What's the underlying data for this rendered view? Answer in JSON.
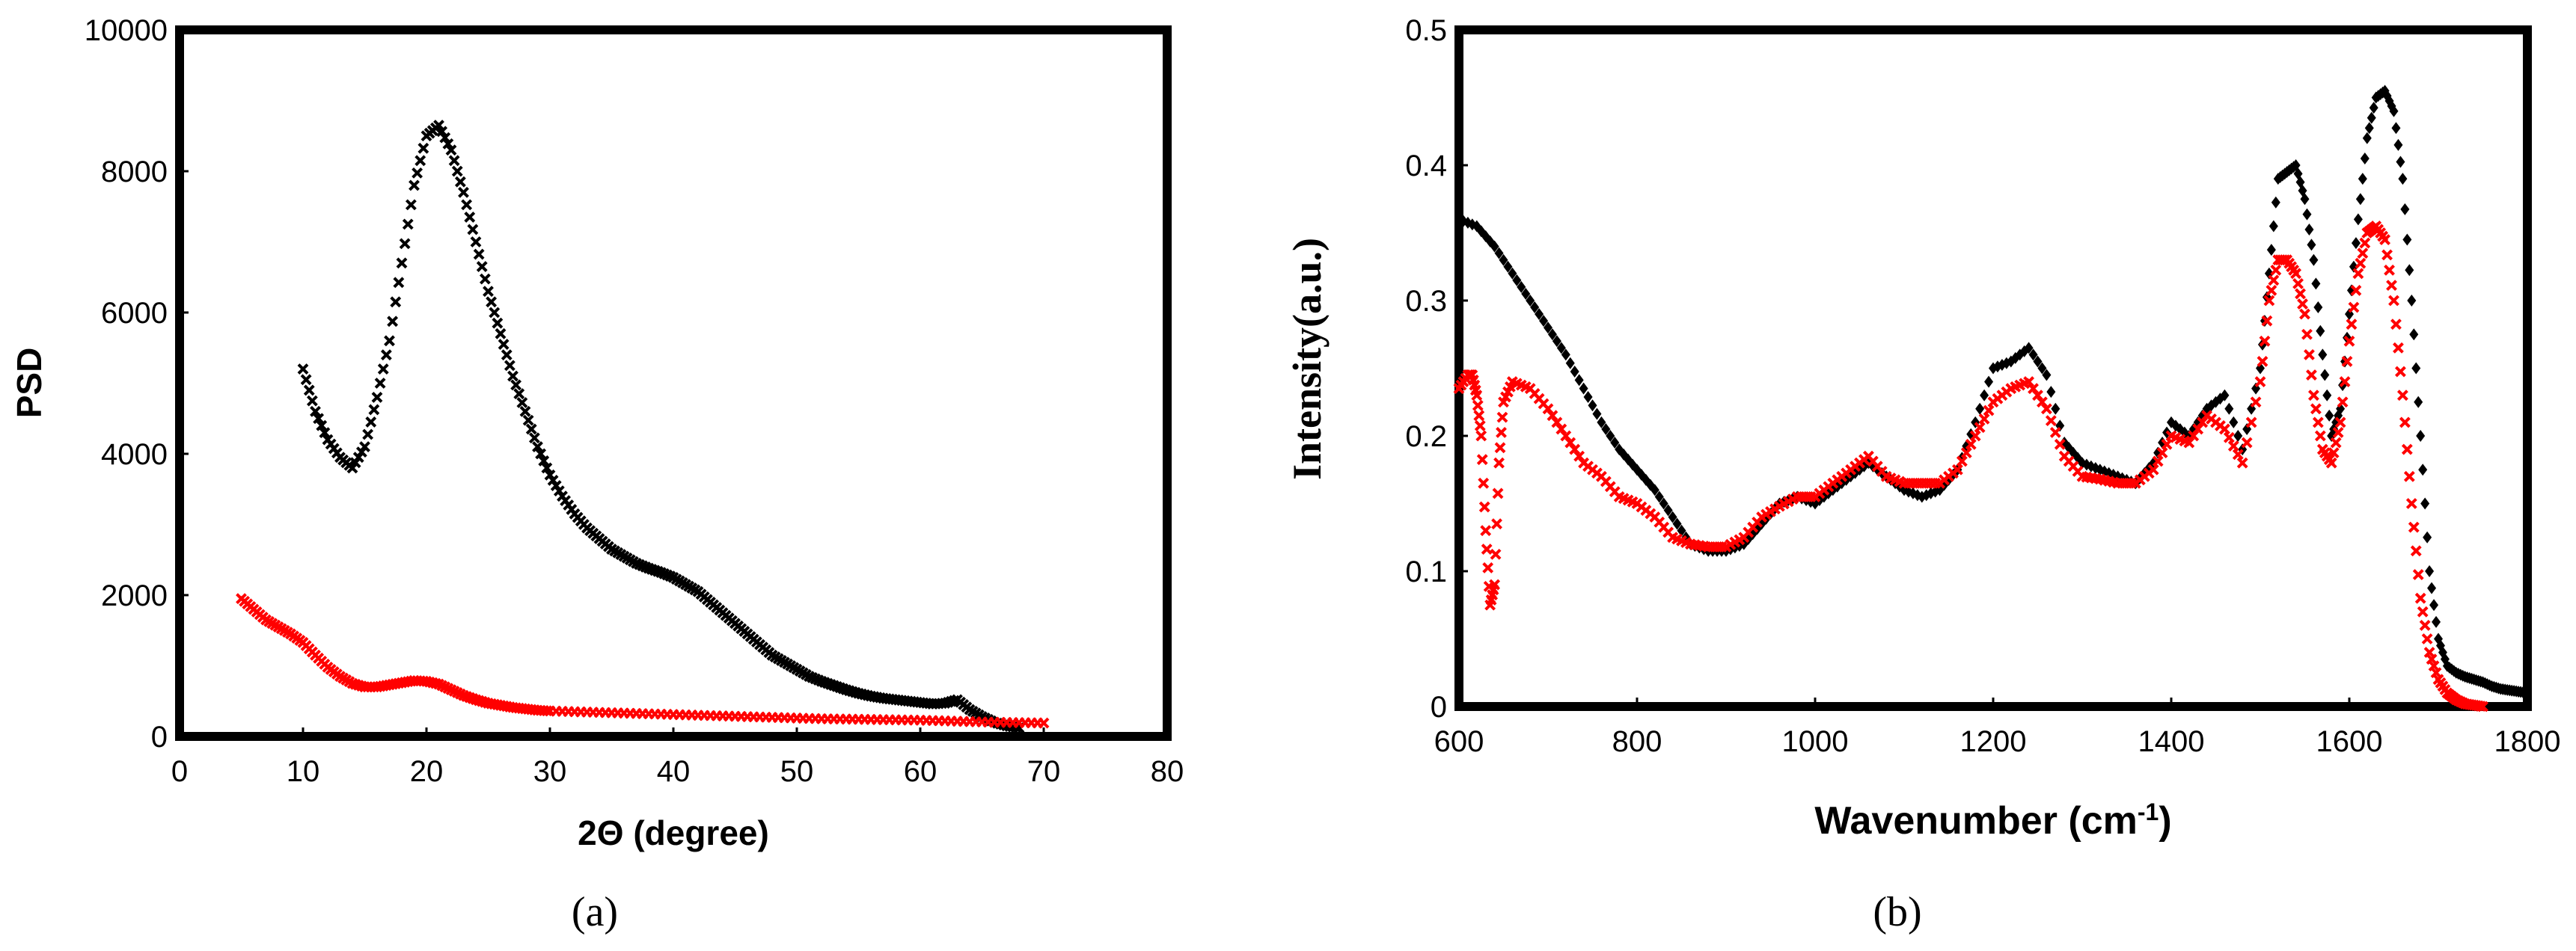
{
  "panels": {
    "a": {
      "label": "(a)"
    },
    "b": {
      "label": "(b)"
    }
  },
  "chart_data": [
    {
      "type": "scatter",
      "id": "a",
      "title": "",
      "xlabel": "2Θ (degree)",
      "ylabel": "PSD",
      "xlim": [
        0,
        80
      ],
      "ylim": [
        0,
        10000
      ],
      "xticks": [
        0,
        10,
        20,
        30,
        40,
        50,
        60,
        70,
        80
      ],
      "yticks": [
        0,
        2000,
        4000,
        6000,
        8000,
        10000
      ],
      "grid": false,
      "legend": "none",
      "series": [
        {
          "name": "black",
          "color": "#000000",
          "marker": "x",
          "x": [
            10,
            11,
            12,
            13,
            14,
            15,
            16,
            17,
            18,
            19,
            20,
            21,
            22,
            23,
            24,
            25,
            26,
            27,
            28,
            29,
            30,
            31,
            32,
            33,
            34,
            35,
            36,
            37,
            38,
            39,
            40,
            41,
            42,
            43,
            44,
            45,
            46,
            47,
            48,
            49,
            50,
            51,
            52,
            53,
            54,
            55,
            56,
            57,
            58,
            59,
            60,
            61,
            62,
            63,
            64,
            65,
            66,
            67,
            68
          ],
          "y": [
            5200,
            4600,
            4200,
            3950,
            3800,
            4100,
            4800,
            5600,
            6700,
            7800,
            8500,
            8650,
            8300,
            7700,
            7000,
            6300,
            5700,
            5100,
            4600,
            4100,
            3700,
            3400,
            3150,
            2950,
            2800,
            2650,
            2550,
            2450,
            2380,
            2320,
            2250,
            2150,
            2050,
            1900,
            1750,
            1600,
            1450,
            1300,
            1150,
            1050,
            950,
            850,
            780,
            720,
            660,
            610,
            570,
            540,
            520,
            500,
            480,
            460,
            470,
            520,
            380,
            280,
            200,
            150,
            120
          ]
        },
        {
          "name": "red",
          "color": "#ff0000",
          "marker": "x",
          "x": [
            5,
            6,
            7,
            8,
            9,
            10,
            11,
            12,
            13,
            14,
            15,
            16,
            17,
            18,
            19,
            20,
            21,
            22,
            23,
            24,
            25,
            26,
            27,
            28,
            29,
            30,
            32,
            34,
            36,
            38,
            40,
            42,
            44,
            46,
            48,
            50,
            52,
            54,
            56,
            58,
            60,
            62,
            64,
            66,
            68,
            70
          ],
          "y": [
            1950,
            1800,
            1650,
            1550,
            1450,
            1330,
            1150,
            980,
            850,
            750,
            700,
            700,
            730,
            760,
            790,
            780,
            740,
            660,
            580,
            520,
            470,
            440,
            410,
            390,
            370,
            360,
            350,
            340,
            330,
            320,
            310,
            300,
            290,
            280,
            270,
            260,
            250,
            245,
            240,
            235,
            230,
            220,
            210,
            200,
            195,
            190
          ]
        }
      ]
    },
    {
      "type": "scatter",
      "id": "b",
      "title": "",
      "xlabel": "Wavenumber (cm",
      "xlabel_sup": "-1",
      "xlabel_end": ")",
      "ylabel": "Intensity(a.u.)",
      "xlim": [
        600,
        1800
      ],
      "ylim": [
        0,
        0.5
      ],
      "xticks": [
        600,
        800,
        1000,
        1200,
        1400,
        1600,
        1800
      ],
      "yticks": [
        0,
        0.1,
        0.2,
        0.3,
        0.4,
        0.5
      ],
      "grid": false,
      "legend": "none",
      "series": [
        {
          "name": "black",
          "color": "#000000",
          "marker": "diamond",
          "x": [
            600,
            620,
            640,
            660,
            680,
            700,
            720,
            740,
            760,
            780,
            800,
            820,
            840,
            860,
            880,
            900,
            920,
            940,
            960,
            980,
            1000,
            1020,
            1040,
            1060,
            1080,
            1100,
            1120,
            1140,
            1160,
            1180,
            1200,
            1220,
            1240,
            1260,
            1280,
            1300,
            1320,
            1340,
            1360,
            1380,
            1400,
            1420,
            1440,
            1460,
            1480,
            1500,
            1510,
            1520,
            1530,
            1540,
            1550,
            1560,
            1570,
            1580,
            1590,
            1600,
            1610,
            1620,
            1630,
            1640,
            1650,
            1660,
            1670,
            1680,
            1690,
            1700,
            1710,
            1720,
            1730,
            1740,
            1750,
            1760,
            1770,
            1780,
            1790,
            1800
          ],
          "y": [
            0.36,
            0.355,
            0.34,
            0.32,
            0.3,
            0.28,
            0.26,
            0.235,
            0.21,
            0.19,
            0.175,
            0.16,
            0.14,
            0.12,
            0.115,
            0.115,
            0.12,
            0.135,
            0.15,
            0.155,
            0.15,
            0.16,
            0.17,
            0.18,
            0.17,
            0.16,
            0.155,
            0.16,
            0.175,
            0.21,
            0.25,
            0.255,
            0.265,
            0.245,
            0.195,
            0.18,
            0.175,
            0.17,
            0.165,
            0.18,
            0.21,
            0.2,
            0.22,
            0.23,
            0.19,
            0.25,
            0.32,
            0.39,
            0.395,
            0.4,
            0.375,
            0.33,
            0.26,
            0.2,
            0.22,
            0.29,
            0.36,
            0.42,
            0.45,
            0.455,
            0.44,
            0.39,
            0.3,
            0.2,
            0.1,
            0.05,
            0.03,
            0.025,
            0.022,
            0.02,
            0.018,
            0.015,
            0.013,
            0.012,
            0.011,
            0.01
          ]
        },
        {
          "name": "red",
          "color": "#ff0000",
          "marker": "x",
          "x": [
            600,
            610,
            615,
            620,
            625,
            630,
            635,
            640,
            645,
            650,
            660,
            680,
            700,
            720,
            740,
            760,
            780,
            800,
            820,
            840,
            860,
            880,
            900,
            920,
            940,
            960,
            980,
            1000,
            1020,
            1040,
            1060,
            1080,
            1100,
            1120,
            1140,
            1160,
            1180,
            1200,
            1220,
            1240,
            1260,
            1280,
            1300,
            1320,
            1340,
            1360,
            1380,
            1400,
            1420,
            1440,
            1460,
            1480,
            1500,
            1510,
            1520,
            1530,
            1540,
            1550,
            1560,
            1570,
            1580,
            1590,
            1600,
            1610,
            1620,
            1630,
            1640,
            1650,
            1660,
            1670,
            1680,
            1690,
            1700,
            1710,
            1720,
            1730,
            1740,
            1750
          ],
          "y": [
            0.235,
            0.245,
            0.245,
            0.23,
            0.2,
            0.13,
            0.075,
            0.09,
            0.18,
            0.225,
            0.24,
            0.235,
            0.22,
            0.2,
            0.18,
            0.17,
            0.155,
            0.15,
            0.14,
            0.125,
            0.12,
            0.118,
            0.118,
            0.125,
            0.14,
            0.148,
            0.155,
            0.155,
            0.165,
            0.175,
            0.185,
            0.17,
            0.165,
            0.165,
            0.165,
            0.175,
            0.2,
            0.225,
            0.235,
            0.24,
            0.22,
            0.185,
            0.17,
            0.168,
            0.165,
            0.165,
            0.175,
            0.2,
            0.195,
            0.215,
            0.205,
            0.18,
            0.24,
            0.3,
            0.33,
            0.33,
            0.32,
            0.29,
            0.23,
            0.19,
            0.18,
            0.21,
            0.27,
            0.32,
            0.35,
            0.355,
            0.345,
            0.3,
            0.23,
            0.15,
            0.08,
            0.04,
            0.02,
            0.01,
            0.005,
            0.002,
            0.001,
            0.0
          ]
        }
      ]
    }
  ]
}
